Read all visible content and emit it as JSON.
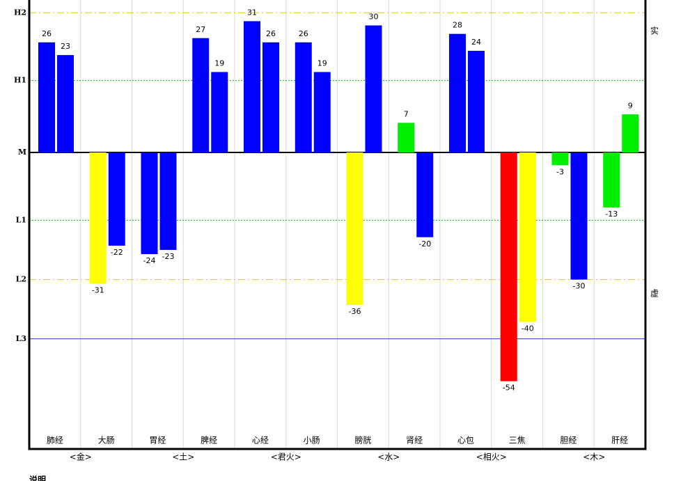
{
  "chart_data": {
    "type": "bar",
    "categories": [
      "肺经",
      "大肠",
      "胃经",
      "脾经",
      "心经",
      "小肠",
      "膀胱",
      "肾经",
      "心包",
      "三焦",
      "胆经",
      "肝经"
    ],
    "groups": [
      "<金>",
      "<土>",
      "<君火>",
      "<水>",
      "<相火>",
      "<木>"
    ],
    "series": [
      {
        "values": [
          26,
          -31,
          -24,
          27,
          31,
          26,
          -36,
          7,
          28,
          -54,
          -3,
          -13
        ],
        "colors": [
          "#0000ff",
          "#ffff00",
          "#0000ff",
          "#0000ff",
          "#0000ff",
          "#0000ff",
          "#ffff00",
          "#00ee00",
          "#0000ff",
          "#ff0000",
          "#00ee00",
          "#00ee00"
        ]
      },
      {
        "values": [
          23,
          -22,
          -23,
          19,
          26,
          19,
          30,
          -20,
          24,
          -40,
          -30,
          9
        ],
        "colors": [
          "#0000ff",
          "#0000ff",
          "#0000ff",
          "#0000ff",
          "#0000ff",
          "#0000ff",
          "#0000ff",
          "#0000ff",
          "#0000ff",
          "#ffff00",
          "#0000ff",
          "#00ee00"
        ]
      }
    ],
    "ylim": [
      -70,
      36
    ],
    "yticks": [
      {
        "value": 33,
        "label": "H2"
      },
      {
        "value": 17,
        "label": "H1"
      },
      {
        "value": 0,
        "label": "M"
      },
      {
        "value": -16,
        "label": "L1"
      },
      {
        "value": -30,
        "label": "L2"
      },
      {
        "value": -44,
        "label": "L3"
      }
    ],
    "grid_colors": [
      "#e0d000",
      "#00c000",
      "#000000",
      "#00c000",
      "#e0d000",
      "#2030c0"
    ],
    "grid_dash": [
      "10 4 2 4",
      "2 2",
      "none",
      "2 2",
      "10 4 2 4",
      "none"
    ],
    "annotations": [
      "实",
      "虚"
    ],
    "footer": "说明"
  }
}
